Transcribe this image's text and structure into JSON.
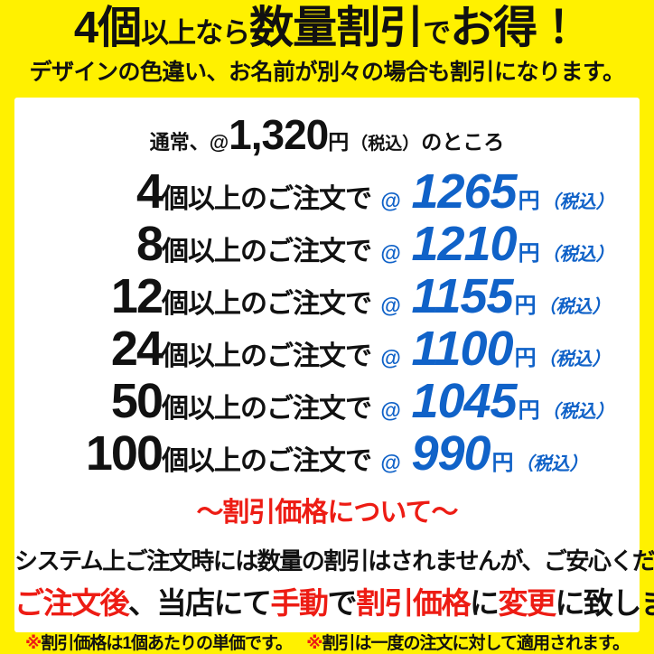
{
  "theme": {
    "yellow": "#FFF100",
    "blue": "#1062C8",
    "red": "#ED1C14",
    "black": "#111111"
  },
  "header": {
    "title_part1": "4個",
    "title_part2": "以上なら",
    "title_part3": "数量割引",
    "title_part4": "で",
    "title_part5": "お得！",
    "subtitle": "デザインの色違い、お名前が別々の場合も割引になります。"
  },
  "normal_price": {
    "prefix": "通常、@",
    "amount": "1,320",
    "unit": "円",
    "tax": "（税込）",
    "suffix": "のところ"
  },
  "discounts": {
    "row_label": "個以上のご注文で",
    "at_symbol": "@",
    "unit": "円",
    "tax_label": "（税込）",
    "rows": [
      {
        "qty": "4",
        "price": "1265"
      },
      {
        "qty": "8",
        "price": "1210"
      },
      {
        "qty": "12",
        "price": "1155"
      },
      {
        "qty": "24",
        "price": "1100"
      },
      {
        "qty": "50",
        "price": "1045"
      },
      {
        "qty": "100",
        "price": "990"
      }
    ]
  },
  "about": {
    "heading": "〜割引価格について〜",
    "line1": "システム上ご注文時には数量の割引はされませんが、ご安心ください",
    "line2_parts": [
      {
        "text": "ご注文後",
        "color": "red"
      },
      {
        "text": "、当店にて",
        "color": "black"
      },
      {
        "text": "手動",
        "color": "red"
      },
      {
        "text": "で",
        "color": "black"
      },
      {
        "text": "割引価格",
        "color": "red"
      },
      {
        "text": "に",
        "color": "black"
      },
      {
        "text": "変更",
        "color": "red"
      },
      {
        "text": "に致します",
        "color": "black"
      }
    ]
  },
  "notes": {
    "mark": "※",
    "note1": "割引価格は1個あたりの単価です。",
    "note2": "割引は一度の注文に対して適用されます。"
  }
}
